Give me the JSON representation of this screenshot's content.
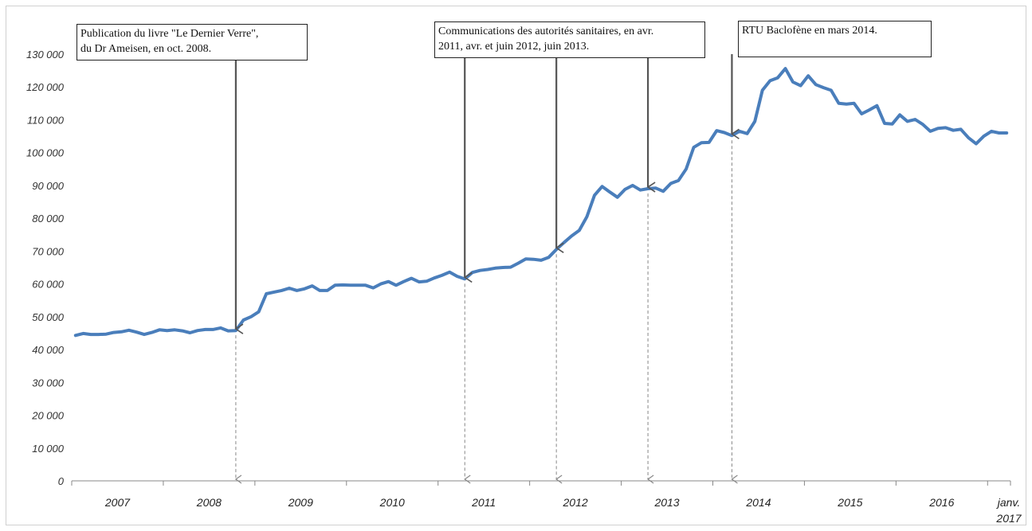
{
  "chart_data": {
    "type": "line",
    "ylim": [
      0,
      130000
    ],
    "yticks": [
      {
        "value": 0,
        "label": "0"
      },
      {
        "value": 10000,
        "label": "10 000"
      },
      {
        "value": 20000,
        "label": "20 000"
      },
      {
        "value": 30000,
        "label": "30 000"
      },
      {
        "value": 40000,
        "label": "40 000"
      },
      {
        "value": 50000,
        "label": "50 000"
      },
      {
        "value": 60000,
        "label": "60 000"
      },
      {
        "value": 70000,
        "label": "70 000"
      },
      {
        "value": 80000,
        "label": "80 000"
      },
      {
        "value": 90000,
        "label": "90 000"
      },
      {
        "value": 100000,
        "label": "100 000"
      },
      {
        "value": 110000,
        "label": "110 000"
      },
      {
        "value": 120000,
        "label": "120 000"
      },
      {
        "value": 130000,
        "label": "130 000"
      }
    ],
    "x_labels": [
      {
        "label": "2007",
        "month_index": 5.5
      },
      {
        "label": "2008",
        "month_index": 17.5
      },
      {
        "label": "2009",
        "month_index": 29.5
      },
      {
        "label": "2010",
        "month_index": 41.5
      },
      {
        "label": "2011",
        "month_index": 53.5
      },
      {
        "label": "2012",
        "month_index": 65.5
      },
      {
        "label": "2013",
        "month_index": 77.5
      },
      {
        "label": "2014",
        "month_index": 89.5
      },
      {
        "label": "2015",
        "month_index": 101.5
      },
      {
        "label": "2016",
        "month_index": 113.5
      },
      {
        "label": "janv.",
        "label2": "2017",
        "month_index": 120
      }
    ],
    "series": [
      {
        "color": "#4a7ebb",
        "start": "2007-01",
        "values": [
          44300,
          44900,
          44600,
          44600,
          44700,
          45200,
          45400,
          45900,
          45300,
          44600,
          45200,
          46000,
          45800,
          46000,
          45700,
          45100,
          45800,
          46100,
          46100,
          46600,
          45700,
          45800,
          49000,
          50000,
          51500,
          57000,
          57500,
          58000,
          58700,
          58000,
          58500,
          59400,
          58000,
          58000,
          59600,
          59700,
          59600,
          59600,
          59600,
          58800,
          60000,
          60700,
          59600,
          60700,
          61700,
          60600,
          60800,
          61800,
          62600,
          63600,
          62300,
          61500,
          63500,
          64100,
          64400,
          64800,
          65000,
          65100,
          66300,
          67600,
          67500,
          67200,
          68100,
          70500,
          72600,
          74600,
          76300,
          80500,
          87000,
          89700,
          88000,
          86400,
          88800,
          90000,
          88600,
          89000,
          89200,
          88200,
          90600,
          91500,
          95000,
          101600,
          103000,
          103100,
          106700,
          106100,
          105200,
          106500,
          105800,
          109500,
          119000,
          121900,
          122800,
          125600,
          121500,
          120400,
          123400,
          120700,
          119800,
          119000,
          115000,
          114800,
          115000,
          111800,
          113000,
          114300,
          108900,
          108700,
          111500,
          109500,
          110100,
          108600,
          106500,
          107400,
          107600,
          106800,
          107100,
          104500,
          102700,
          105000,
          106500,
          106000,
          106000
        ]
      }
    ],
    "annotations": [
      {
        "lines": [
          "Publication du livre \"Le Dernier Verre\",",
          "du Dr Ameisen, en oct. 2008."
        ],
        "month_index": [
          21
        ]
      },
      {
        "lines": [
          "Communications des autorités sanitaires, en avr.",
          "2011, avr. et juin 2012, juin 2013."
        ],
        "month_index": [
          51,
          63,
          75
        ]
      },
      {
        "lines": [
          "RTU Baclofène en mars 2014."
        ],
        "month_index": [
          86
        ]
      }
    ],
    "grid": false,
    "legend": "none"
  }
}
